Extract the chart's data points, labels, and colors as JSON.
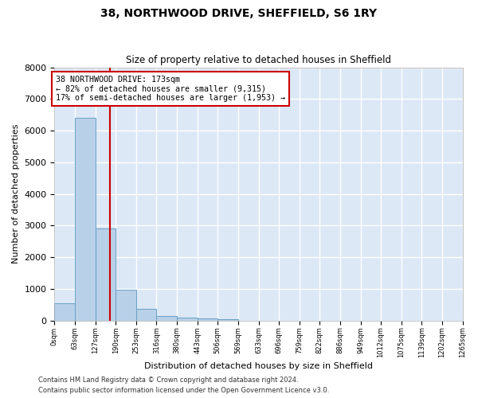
{
  "title": "38, NORTHWOOD DRIVE, SHEFFIELD, S6 1RY",
  "subtitle": "Size of property relative to detached houses in Sheffield",
  "xlabel": "Distribution of detached houses by size in Sheffield",
  "ylabel": "Number of detached properties",
  "bar_color": "#b8d0e8",
  "bar_edge_color": "#6aa0c8",
  "background_color": "#dce8f5",
  "grid_color": "#ffffff",
  "vline_x": 173,
  "vline_color": "#cc0000",
  "bin_edges": [
    0,
    63,
    127,
    190,
    253,
    316,
    380,
    443,
    506,
    569,
    633,
    696,
    759,
    822,
    886,
    949,
    1012,
    1075,
    1139,
    1202,
    1265
  ],
  "bar_heights": [
    560,
    6400,
    2900,
    980,
    360,
    155,
    95,
    80,
    35,
    0,
    0,
    0,
    0,
    0,
    0,
    0,
    0,
    0,
    0,
    0
  ],
  "annotation_text": "38 NORTHWOOD DRIVE: 173sqm\n← 82% of detached houses are smaller (9,315)\n17% of semi-detached houses are larger (1,953) →",
  "annotation_box_color": "#ffffff",
  "annotation_box_edge": "#cc0000",
  "ylim": [
    0,
    8000
  ],
  "yticks": [
    0,
    1000,
    2000,
    3000,
    4000,
    5000,
    6000,
    7000,
    8000
  ],
  "footer_line1": "Contains HM Land Registry data © Crown copyright and database right 2024.",
  "footer_line2": "Contains public sector information licensed under the Open Government Licence v3.0.",
  "fig_facecolor": "#ffffff"
}
